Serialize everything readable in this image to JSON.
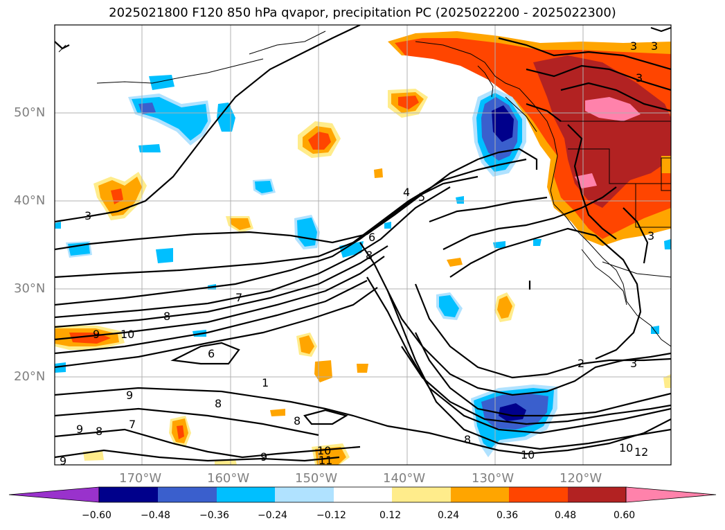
{
  "title": "2025021800 F120 850 hPa qvapor, precipitation PC (2025022200 - 2025022300)",
  "latitude_labels": [
    "50°N",
    "40°N",
    "30°N",
    "20°N"
  ],
  "longitude_labels": [
    "170°W",
    "160°W",
    "150°W",
    "140°W",
    "130°W",
    "120°W"
  ],
  "colorbar": {
    "ticks": [
      "−0.60",
      "−0.48",
      "−0.36",
      "−0.24",
      "−0.12",
      "0.12",
      "0.24",
      "0.36",
      "0.48",
      "0.60"
    ],
    "colors": [
      "#9932cc",
      "#00008b",
      "#3a5fcd",
      "#00bfff",
      "#b0e2ff",
      "#ffffff",
      "#ffec8b",
      "#ffa500",
      "#ff4500",
      "#b22222",
      "#ff82ab"
    ]
  },
  "contour_labels": [
    "3",
    "3",
    "3",
    "3",
    "3",
    "4",
    "5",
    "6",
    "8",
    "7",
    "8",
    "9",
    "10",
    "6",
    "1",
    "9",
    "7",
    "8",
    "9",
    "8",
    "8",
    "9",
    "10",
    "11",
    "8",
    "10",
    "2",
    "3",
    "10",
    "12",
    "9"
  ]
}
